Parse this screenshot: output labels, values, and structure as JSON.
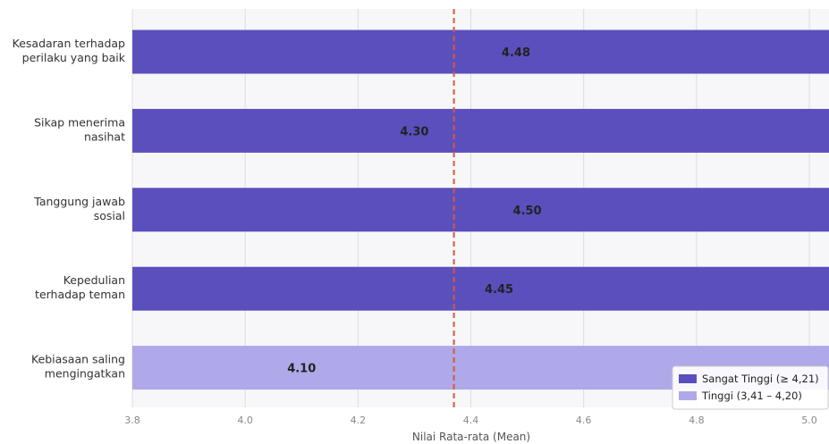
{
  "chart_data": {
    "type": "bar",
    "orientation": "horizontal",
    "title": "",
    "xlabel": "Nilai Rata-rata (Mean)",
    "ylabel": "",
    "xlim": [
      3.8,
      5.0
    ],
    "xticks": [
      "3.8",
      "4.0",
      "4.2",
      "4.4",
      "4.6",
      "4.8",
      "5.0"
    ],
    "grid": true,
    "categories": [
      "Kesadaran terhadap perilaku yang baik",
      "Sikap menerima nasihat",
      "Tanggung jawab sosial",
      "Kepedulian terhadap teman",
      "Kebiasaan saling mengingatkan"
    ],
    "category_lines": [
      [
        "Kesadaran terhadap",
        "perilaku yang baik"
      ],
      [
        "Sikap menerima",
        "nasihat"
      ],
      [
        "Tanggung jawab",
        "sosial"
      ],
      [
        "Kepedulian",
        "terhadap teman"
      ],
      [
        "Kebiasaan saling",
        "mengingatkan"
      ]
    ],
    "values": [
      4.48,
      4.3,
      4.5,
      4.45,
      4.1
    ],
    "value_labels": [
      "4.48",
      "4.30",
      "4.50",
      "4.45",
      "4.10"
    ],
    "bar_classes": [
      0,
      0,
      0,
      0,
      1
    ],
    "reference_line": {
      "value": 4.37,
      "style": "dashed",
      "color": "#d9583b"
    },
    "legend": {
      "position": "bottom-right",
      "entries": [
        {
          "label": "Sangat Tinggi (≥ 4,21)",
          "color": "#5b4fbd"
        },
        {
          "label": "Tinggi (3,41 – 4,20)",
          "color": "#afa9e9"
        }
      ]
    },
    "colors": {
      "band": "#f7f7fa",
      "grid": "#dddddd"
    }
  }
}
